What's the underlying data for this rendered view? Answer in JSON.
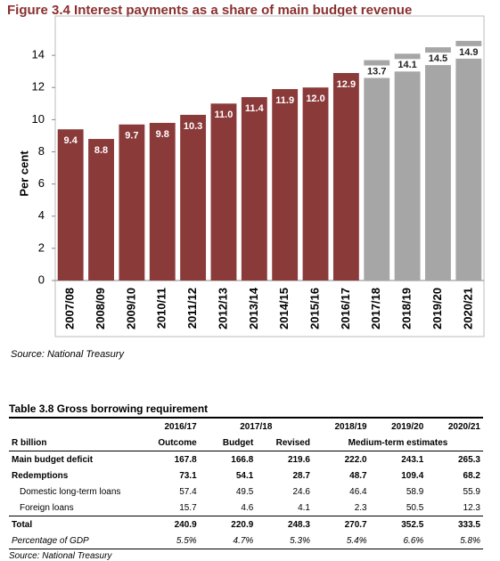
{
  "chart_data": {
    "type": "bar",
    "title": "Figure 3.4 Interest payments as a share of main budget revenue",
    "y_label": "Per cent",
    "categories": [
      "2007/08",
      "2008/09",
      "2009/10",
      "2010/11",
      "2011/12",
      "2012/13",
      "2013/14",
      "2014/15",
      "2015/16",
      "2016/17",
      "2017/18",
      "2018/19",
      "2019/20",
      "2020/21"
    ],
    "values": [
      9.4,
      8.8,
      9.7,
      9.8,
      10.3,
      11.0,
      11.4,
      11.9,
      12.0,
      12.9,
      13.7,
      14.1,
      14.5,
      14.9
    ],
    "value_labels": [
      "9.4",
      "8.8",
      "9.7",
      "9.8",
      "10.3",
      "11.0",
      "11.4",
      "11.9",
      "12.0",
      "12.9",
      "13.7",
      "14.1",
      "14.5",
      "14.9"
    ],
    "colors": [
      "#8b3a3a",
      "#8b3a3a",
      "#8b3a3a",
      "#8b3a3a",
      "#8b3a3a",
      "#8b3a3a",
      "#8b3a3a",
      "#8b3a3a",
      "#8b3a3a",
      "#8b3a3a",
      "#a6a6a6",
      "#a6a6a6",
      "#a6a6a6",
      "#a6a6a6"
    ],
    "ylim": [
      0,
      16
    ],
    "yticks": [
      0,
      2,
      4,
      6,
      8,
      10,
      12,
      14
    ],
    "source": "Source: National Treasury"
  },
  "table": {
    "title": "Table 3.8 Gross borrowing requirement",
    "header": [
      [
        "",
        "2016/17",
        "2017/18",
        "2018/19",
        "2019/20",
        "2020/21"
      ],
      [
        "R billion",
        "Outcome",
        "Budget",
        "Revised",
        "Medium-term estimates"
      ]
    ],
    "rows": [
      [
        "Main budget deficit",
        "167.8",
        "166.8",
        "219.6",
        "222.0",
        "243.1",
        "265.3"
      ],
      [
        "Redemptions",
        "73.1",
        "54.1",
        "28.7",
        "48.7",
        "109.4",
        "68.2"
      ],
      [
        "Domestic long-term loans",
        "57.4",
        "49.5",
        "24.6",
        "46.4",
        "58.9",
        "55.9"
      ],
      [
        "Foreign loans",
        "15.7",
        "4.6",
        "4.1",
        "2.3",
        "50.5",
        "12.3"
      ],
      [
        "Total",
        "240.9",
        "220.9",
        "248.3",
        "270.7",
        "352.5",
        "333.5"
      ],
      [
        "Percentage of GDP",
        "5.5%",
        "4.7%",
        "5.3%",
        "5.4%",
        "6.6%",
        "5.8%"
      ]
    ],
    "source": "Source: National Treasury"
  }
}
